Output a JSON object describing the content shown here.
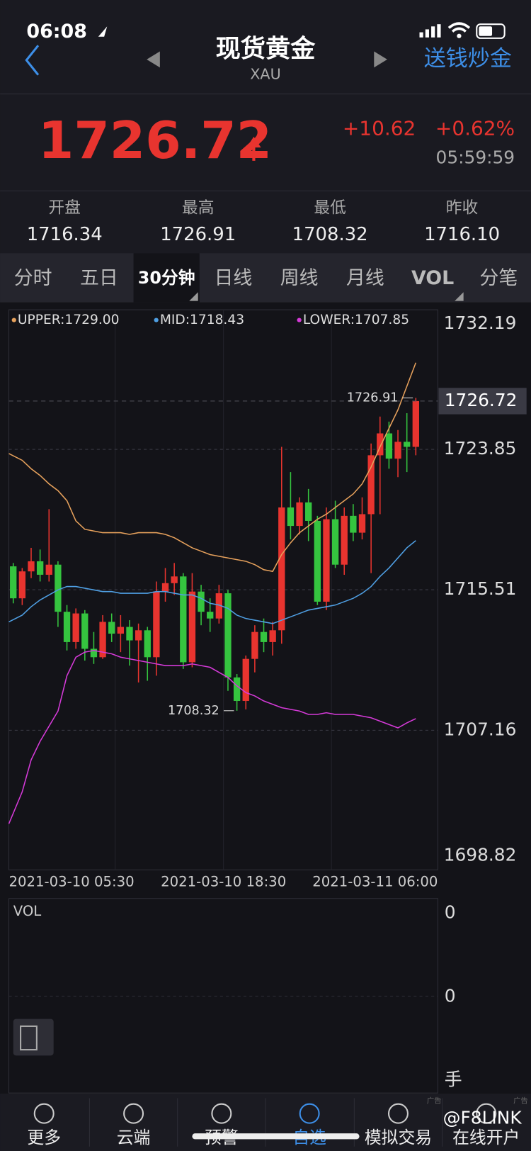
{
  "status": {
    "time": "06:08"
  },
  "header": {
    "title": "现货黄金",
    "subtitle": "XAU",
    "action": "送钱炒金"
  },
  "quote": {
    "price": "1726.72",
    "change": "+10.62",
    "percent": "+0.62%",
    "time": "05:59:59"
  },
  "stats": [
    {
      "label": "开盘",
      "value": "1716.34"
    },
    {
      "label": "最高",
      "value": "1726.91"
    },
    {
      "label": "最低",
      "value": "1708.32"
    },
    {
      "label": "昨收",
      "value": "1716.10"
    }
  ],
  "tabs": [
    "分时",
    "五日",
    "30分钟",
    "日线",
    "周线",
    "月线",
    "VOL",
    "分笔"
  ],
  "chart_data": {
    "type": "candlestick",
    "categories": [
      "2021-03-10 05:30",
      null,
      null,
      null,
      null,
      null,
      null,
      null,
      null,
      null,
      null,
      null,
      null,
      null,
      null,
      null,
      null,
      null,
      null,
      null,
      null,
      null,
      null,
      "2021-03-10 18:30",
      null,
      null,
      null,
      null,
      null,
      null,
      null,
      null,
      null,
      null,
      null,
      null,
      null,
      null,
      null,
      null,
      null,
      null,
      null,
      null,
      null,
      "2021-03-11 06:00"
    ],
    "open": [
      1716.9,
      1715.0,
      1716.6,
      1717.2,
      1716.4,
      1717.0,
      1714.2,
      1712.4,
      1714.1,
      1712.0,
      1711.5,
      1713.6,
      1712.9,
      1713.3,
      1712.5,
      1713.1,
      1711.5,
      1715.4,
      1715.9,
      1716.3,
      1711.2,
      1715.4,
      1714.2,
      1713.8,
      1715.3,
      1710.3,
      1708.9,
      1711.4,
      1713.0,
      1712.4,
      1713.1,
      1720.4,
      1719.3,
      1720.7,
      1719.6,
      1714.8,
      1719.7,
      1717.0,
      1719.9,
      1718.9,
      1720.0,
      1723.5,
      1724.8,
      1723.3,
      1724.3,
      1724.0
    ],
    "high": [
      1717.1,
      1716.8,
      1718.0,
      1717.9,
      1720.3,
      1717.2,
      1714.6,
      1714.4,
      1714.3,
      1713.0,
      1714.0,
      1714.1,
      1714.0,
      1713.7,
      1713.5,
      1713.3,
      1716.0,
      1716.8,
      1717.1,
      1716.5,
      1716.5,
      1715.8,
      1715.0,
      1715.8,
      1715.5,
      1710.5,
      1711.6,
      1713.4,
      1713.8,
      1713.6,
      1724.0,
      1722.5,
      1721.0,
      1721.5,
      1719.9,
      1720.4,
      1720.8,
      1720.4,
      1720.6,
      1721.0,
      1724.2,
      1725.8,
      1725.5,
      1725.0,
      1726.0,
      1726.91
    ],
    "low": [
      1714.7,
      1714.6,
      1716.2,
      1716.0,
      1716.0,
      1713.3,
      1711.9,
      1712.0,
      1711.3,
      1711.1,
      1711.4,
      1712.4,
      1711.8,
      1711.0,
      1710.0,
      1710.1,
      1710.4,
      1714.8,
      1715.2,
      1710.8,
      1710.9,
      1713.4,
      1713.0,
      1713.5,
      1709.5,
      1708.32,
      1708.4,
      1710.6,
      1711.8,
      1711.6,
      1712.3,
      1718.5,
      1718.8,
      1718.4,
      1714.6,
      1714.3,
      1716.8,
      1716.4,
      1718.4,
      1718.5,
      1716.5,
      1720.0,
      1722.7,
      1722.2,
      1722.5,
      1723.5
    ],
    "close": [
      1715.0,
      1716.6,
      1717.2,
      1716.4,
      1717.0,
      1714.2,
      1712.4,
      1714.1,
      1712.0,
      1711.5,
      1713.6,
      1712.9,
      1713.3,
      1712.5,
      1713.1,
      1711.5,
      1715.4,
      1715.9,
      1716.3,
      1711.2,
      1715.4,
      1714.2,
      1713.8,
      1715.3,
      1710.3,
      1708.9,
      1711.4,
      1713.0,
      1712.4,
      1713.1,
      1720.4,
      1719.3,
      1720.7,
      1719.6,
      1714.8,
      1719.7,
      1717.0,
      1719.9,
      1718.9,
      1720.0,
      1723.5,
      1724.8,
      1723.3,
      1724.3,
      1724.0,
      1726.72
    ],
    "up_color": "#e8342f",
    "down_color": "#35c43f",
    "series": [
      {
        "name": "UPPER:1729.00",
        "color": "#e6a15c",
        "values": [
          1723.6,
          1723.2,
          1722.7,
          1722.3,
          1721.8,
          1721.4,
          1720.8,
          1719.6,
          1719.1,
          1719.0,
          1718.9,
          1718.9,
          1718.9,
          1718.8,
          1718.9,
          1718.9,
          1718.9,
          1718.8,
          1718.6,
          1718.3,
          1718.0,
          1717.8,
          1717.6,
          1717.5,
          1717.4,
          1717.3,
          1717.2,
          1717.0,
          1716.7,
          1716.6,
          1717.6,
          1718.3,
          1718.9,
          1719.3,
          1719.7,
          1720.0,
          1720.4,
          1720.8,
          1721.2,
          1721.8,
          1722.8,
          1724.0,
          1725.1,
          1726.2,
          1727.6,
          1729.0
        ]
      },
      {
        "name": "MID:1718.43",
        "color": "#4f9fe3",
        "values": [
          1713.6,
          1714.0,
          1714.5,
          1714.9,
          1715.2,
          1715.5,
          1715.7,
          1715.7,
          1715.6,
          1715.5,
          1715.4,
          1715.4,
          1715.3,
          1715.3,
          1715.3,
          1715.3,
          1715.4,
          1715.4,
          1715.3,
          1715.2,
          1715.2,
          1715.0,
          1714.7,
          1714.6,
          1714.4,
          1714.0,
          1713.8,
          1713.7,
          1713.6,
          1713.5,
          1713.7,
          1713.9,
          1714.1,
          1714.3,
          1714.4,
          1714.5,
          1714.6,
          1714.8,
          1715.0,
          1715.3,
          1715.7,
          1716.3,
          1716.8,
          1717.4,
          1718.0,
          1718.43
        ]
      },
      {
        "name": "LOWER:1707.85",
        "color": "#d53ad8",
        "values": [
          1701.6,
          1703.5,
          1705.4,
          1706.5,
          1707.4,
          1708.3,
          1710.4,
          1711.5,
          1711.8,
          1711.9,
          1711.8,
          1711.7,
          1711.5,
          1711.4,
          1711.3,
          1711.2,
          1711.1,
          1711.0,
          1711.0,
          1711.0,
          1711.1,
          1711.0,
          1710.9,
          1710.6,
          1710.3,
          1709.8,
          1709.4,
          1709.2,
          1708.9,
          1708.7,
          1708.5,
          1708.4,
          1708.3,
          1708.1,
          1708.1,
          1708.2,
          1708.1,
          1708.1,
          1708.1,
          1708.0,
          1707.9,
          1707.7,
          1707.5,
          1707.3,
          1707.6,
          1707.85
        ]
      }
    ],
    "ylim": [
      1698.82,
      1732.19
    ],
    "yticks": [
      1732.19,
      1723.85,
      1715.51,
      1707.16,
      1698.82
    ],
    "grid": true
  },
  "volume": {
    "label": "VOL",
    "ticks": [
      "0",
      "0"
    ],
    "unit": "手"
  },
  "nav": [
    "更多",
    "云端",
    "预警",
    "自选",
    "模拟交易",
    "在线开户"
  ],
  "ads": [
    "广告",
    "广告"
  ],
  "watermark": "@F8LINK"
}
